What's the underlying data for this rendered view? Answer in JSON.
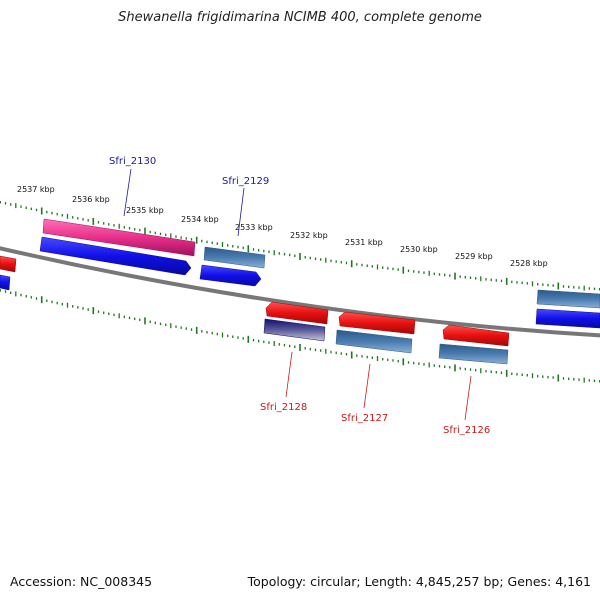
{
  "title": "Shewanella frigidimarina NCIMB 400, complete genome",
  "footer": {
    "accession": "Accession: NC_008345",
    "summary": "Topology: circular; Length: 4,845,257 bp; Genes: 4,161"
  },
  "scale_labels": [
    "2537 kbp",
    "2536 kbp",
    "2535 kbp",
    "2534 kbp",
    "2533 kbp",
    "2532 kbp",
    "2531 kbp",
    "2530 kbp",
    "2529 kbp",
    "2528 kbp"
  ],
  "gene_labels": {
    "top": [
      "Sfri_2130",
      "Sfri_2129"
    ],
    "bottom": [
      "Sfri_2128",
      "Sfri_2127",
      "Sfri_2126"
    ]
  },
  "colors": {
    "backbone": "#808080",
    "tick": "#1f7a1f",
    "forward_cds": "#1010e8",
    "reverse_cds": "#e81010",
    "pink_gene": "#e8308a",
    "steel_gene": "#4a7cb0",
    "navy_gene": "#101070",
    "top_label": "#1a1aa0",
    "bottom_label": "#c81a1a"
  }
}
